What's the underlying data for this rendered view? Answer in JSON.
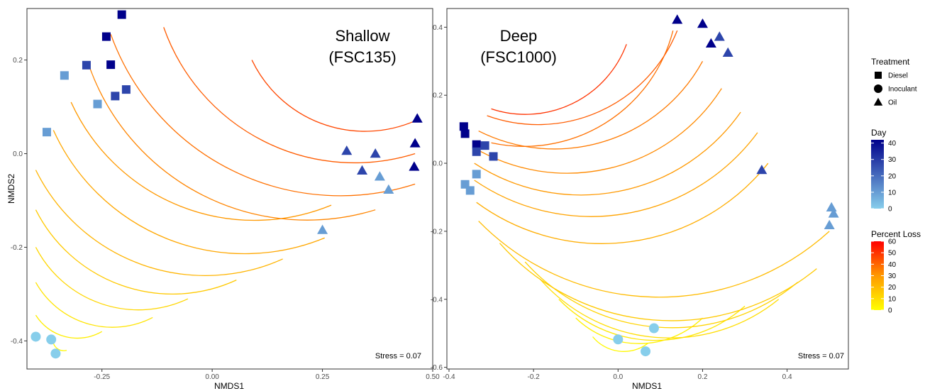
{
  "legend": {
    "treatment_title": "Treatment",
    "treatments": [
      {
        "label": "Diesel",
        "shape": "square"
      },
      {
        "label": "Inoculant",
        "shape": "circle"
      },
      {
        "label": "Oil",
        "shape": "triangle"
      }
    ],
    "day_title": "Day",
    "day_range": [
      0,
      42
    ],
    "day_ticks": [
      "0",
      "10",
      "20",
      "30",
      "40"
    ],
    "day_colors": {
      "low": "#87ceeb",
      "high": "#00008b"
    },
    "loss_title": "Percent Loss",
    "loss_range": [
      0,
      60
    ],
    "loss_ticks": [
      "0",
      "10",
      "20",
      "30",
      "40",
      "50",
      "60"
    ],
    "loss_colors": {
      "low": "#ffff00",
      "mid": "#ff9900",
      "high": "#ff0000"
    }
  },
  "chart_data": [
    {
      "type": "scatter",
      "title_line1": "Shallow",
      "title_line2": "(FSC135)",
      "xlabel": "NMDS1",
      "ylabel": "NMDS2",
      "stress_label": "Stress = 0.07",
      "xlim": [
        -0.42,
        0.5
      ],
      "ylim": [
        -0.46,
        0.31
      ],
      "x_ticks": [
        -0.25,
        0.0,
        0.25,
        0.5
      ],
      "x_tick_labels": [
        "-0.25",
        "0.00",
        "0.25",
        "0.50"
      ],
      "y_ticks": [
        -0.4,
        -0.2,
        0.0,
        0.2
      ],
      "y_tick_labels": [
        "-0.4",
        "-0.2",
        "0.0",
        "0.2"
      ],
      "contours": [
        {
          "loss": 2,
          "x0": -0.36,
          "y0": -0.405,
          "x1": -0.33,
          "y1": -0.42,
          "r0": 0.03,
          "r1": 0.03
        },
        {
          "loss": 5,
          "x0": -0.4,
          "y0": -0.345,
          "x1": -0.25,
          "y1": -0.38,
          "r0": 0.06,
          "r1": 0.06
        },
        {
          "loss": 8,
          "x0": -0.4,
          "y0": -0.275,
          "x1": -0.135,
          "y1": -0.35,
          "r0": 0.08,
          "r1": 0.08
        },
        {
          "loss": 12,
          "x0": -0.4,
          "y0": -0.2,
          "x1": -0.055,
          "y1": -0.31,
          "r0": 0.1,
          "r1": 0.1
        },
        {
          "loss": 16,
          "x0": -0.4,
          "y0": -0.12,
          "x1": 0.055,
          "y1": -0.27,
          "r0": 0.12,
          "r1": 0.12
        },
        {
          "loss": 22,
          "x0": -0.4,
          "y0": -0.035,
          "x1": 0.16,
          "y1": -0.225,
          "r0": 0.14,
          "r1": 0.14
        },
        {
          "loss": 26,
          "x0": -0.36,
          "y0": 0.05,
          "x1": 0.255,
          "y1": -0.18,
          "r0": 0.16,
          "r1": 0.16
        },
        {
          "loss": 30,
          "x0": -0.32,
          "y0": 0.11,
          "x1": 0.27,
          "y1": -0.11,
          "r0": 0.18,
          "r1": 0.18
        },
        {
          "loss": 34,
          "x0": -0.28,
          "y0": 0.19,
          "x1": 0.37,
          "y1": -0.12,
          "r0": 0.2,
          "r1": 0.2
        },
        {
          "loss": 38,
          "x0": -0.23,
          "y0": 0.255,
          "x1": 0.46,
          "y1": -0.065,
          "r0": 0.22,
          "r1": 0.22
        },
        {
          "loss": 42,
          "x0": -0.11,
          "y0": 0.27,
          "x1": 0.46,
          "y1": 0.0,
          "r0": 0.24,
          "r1": 0.24
        },
        {
          "loss": 46,
          "x0": 0.09,
          "y0": 0.2,
          "x1": 0.46,
          "y1": 0.07,
          "r0": 0.26,
          "r1": 0.26
        }
      ],
      "points": [
        {
          "treatment": "Diesel",
          "day": 42,
          "x": -0.205,
          "y": 0.297
        },
        {
          "treatment": "Diesel",
          "day": 42,
          "x": -0.24,
          "y": 0.25
        },
        {
          "treatment": "Diesel",
          "day": 42,
          "x": -0.23,
          "y": 0.19
        },
        {
          "treatment": "Diesel",
          "day": 28,
          "x": -0.285,
          "y": 0.189
        },
        {
          "treatment": "Diesel",
          "day": 28,
          "x": -0.195,
          "y": 0.137
        },
        {
          "treatment": "Diesel",
          "day": 28,
          "x": -0.22,
          "y": 0.123
        },
        {
          "treatment": "Diesel",
          "day": 10,
          "x": -0.335,
          "y": 0.167
        },
        {
          "treatment": "Diesel",
          "day": 10,
          "x": -0.26,
          "y": 0.106
        },
        {
          "treatment": "Diesel",
          "day": 10,
          "x": -0.375,
          "y": 0.046
        },
        {
          "treatment": "Oil",
          "day": 42,
          "x": 0.465,
          "y": 0.075
        },
        {
          "treatment": "Oil",
          "day": 42,
          "x": 0.46,
          "y": 0.022
        },
        {
          "treatment": "Oil",
          "day": 42,
          "x": 0.458,
          "y": -0.028
        },
        {
          "treatment": "Oil",
          "day": 28,
          "x": 0.305,
          "y": 0.006
        },
        {
          "treatment": "Oil",
          "day": 28,
          "x": 0.37,
          "y": 0.0
        },
        {
          "treatment": "Oil",
          "day": 28,
          "x": 0.34,
          "y": -0.036
        },
        {
          "treatment": "Oil",
          "day": 10,
          "x": 0.38,
          "y": -0.049
        },
        {
          "treatment": "Oil",
          "day": 10,
          "x": 0.4,
          "y": -0.077
        },
        {
          "treatment": "Oil",
          "day": 10,
          "x": 0.25,
          "y": -0.163
        },
        {
          "treatment": "Inoculant",
          "day": 0,
          "x": -0.4,
          "y": -0.391
        },
        {
          "treatment": "Inoculant",
          "day": 0,
          "x": -0.365,
          "y": -0.397
        },
        {
          "treatment": "Inoculant",
          "day": 0,
          "x": -0.355,
          "y": -0.427
        }
      ]
    },
    {
      "type": "scatter",
      "title_line1": "Deep",
      "title_line2": "(FSC1000)",
      "xlabel": "NMDS1",
      "ylabel": "",
      "stress_label": "Stress = 0.07",
      "xlim": [
        -0.405,
        0.545
      ],
      "ylim": [
        -0.605,
        0.455
      ],
      "x_ticks": [
        -0.4,
        -0.2,
        0.0,
        0.2,
        0.4
      ],
      "x_tick_labels": [
        "-0.4",
        "-0.2",
        "0.0",
        "0.2",
        "0.4"
      ],
      "y_ticks": [
        -0.6,
        -0.4,
        -0.2,
        0.0,
        0.2,
        0.4
      ],
      "y_tick_labels": [
        "-0.6",
        "-0.4",
        "-0.2",
        "0.0",
        "0.2",
        "0.4"
      ],
      "contours": [
        {
          "loss": 2,
          "x0": -0.06,
          "y0": -0.51,
          "x1": 0.07,
          "y1": -0.53
        },
        {
          "loss": 4,
          "x0": -0.1,
          "y0": -0.455,
          "x1": 0.2,
          "y1": -0.455
        },
        {
          "loss": 7,
          "x0": -0.14,
          "y0": -0.4,
          "x1": 0.3,
          "y1": -0.42
        },
        {
          "loss": 10,
          "x0": -0.185,
          "y0": -0.34,
          "x1": 0.38,
          "y1": -0.4
        },
        {
          "loss": 13,
          "x0": -0.22,
          "y0": -0.29,
          "x1": 0.425,
          "y1": -0.35
        },
        {
          "loss": 16,
          "x0": -0.28,
          "y0": -0.235,
          "x1": 0.47,
          "y1": -0.31
        },
        {
          "loss": 20,
          "x0": -0.33,
          "y0": -0.17,
          "x1": 0.5,
          "y1": -0.2
        },
        {
          "loss": 24,
          "x0": -0.335,
          "y0": -0.115,
          "x1": 0.355,
          "y1": 0.0
        },
        {
          "loss": 27,
          "x0": -0.34,
          "y0": -0.05,
          "x1": 0.33,
          "y1": 0.09
        },
        {
          "loss": 30,
          "x0": -0.34,
          "y0": 0.0,
          "x1": 0.29,
          "y1": 0.15
        },
        {
          "loss": 33,
          "x0": -0.34,
          "y0": 0.045,
          "x1": 0.245,
          "y1": 0.22
        },
        {
          "loss": 36,
          "x0": -0.33,
          "y0": 0.095,
          "x1": 0.2,
          "y1": 0.3
        },
        {
          "loss": 38,
          "x0": -0.3,
          "y0": 0.06,
          "x1": 0.13,
          "y1": 0.39
        },
        {
          "loss": 42,
          "x0": -0.31,
          "y0": 0.14,
          "x1": 0.14,
          "y1": 0.39
        },
        {
          "loss": 50,
          "x0": -0.3,
          "y0": 0.16,
          "x1": 0.02,
          "y1": 0.35
        }
      ],
      "points": [
        {
          "treatment": "Oil",
          "day": 42,
          "x": 0.14,
          "y": 0.422
        },
        {
          "treatment": "Oil",
          "day": 42,
          "x": 0.2,
          "y": 0.41
        },
        {
          "treatment": "Oil",
          "day": 42,
          "x": 0.22,
          "y": 0.352
        },
        {
          "treatment": "Oil",
          "day": 28,
          "x": 0.24,
          "y": 0.372
        },
        {
          "treatment": "Oil",
          "day": 28,
          "x": 0.26,
          "y": 0.325
        },
        {
          "treatment": "Oil",
          "day": 28,
          "x": 0.34,
          "y": -0.02
        },
        {
          "treatment": "Oil",
          "day": 10,
          "x": 0.505,
          "y": -0.13
        },
        {
          "treatment": "Oil",
          "day": 10,
          "x": 0.51,
          "y": -0.148
        },
        {
          "treatment": "Oil",
          "day": 10,
          "x": 0.5,
          "y": -0.182
        },
        {
          "treatment": "Diesel",
          "day": 42,
          "x": -0.365,
          "y": 0.108
        },
        {
          "treatment": "Diesel",
          "day": 42,
          "x": -0.362,
          "y": 0.087
        },
        {
          "treatment": "Diesel",
          "day": 42,
          "x": -0.335,
          "y": 0.055
        },
        {
          "treatment": "Diesel",
          "day": 28,
          "x": -0.315,
          "y": 0.052
        },
        {
          "treatment": "Diesel",
          "day": 28,
          "x": -0.335,
          "y": 0.034
        },
        {
          "treatment": "Diesel",
          "day": 28,
          "x": -0.295,
          "y": 0.02
        },
        {
          "treatment": "Diesel",
          "day": 10,
          "x": -0.335,
          "y": -0.032
        },
        {
          "treatment": "Diesel",
          "day": 10,
          "x": -0.362,
          "y": -0.062
        },
        {
          "treatment": "Diesel",
          "day": 10,
          "x": -0.35,
          "y": -0.08
        },
        {
          "treatment": "Inoculant",
          "day": 0,
          "x": 0.0,
          "y": -0.518
        },
        {
          "treatment": "Inoculant",
          "day": 0,
          "x": 0.065,
          "y": -0.553
        },
        {
          "treatment": "Inoculant",
          "day": 0,
          "x": 0.085,
          "y": -0.485
        }
      ]
    }
  ]
}
